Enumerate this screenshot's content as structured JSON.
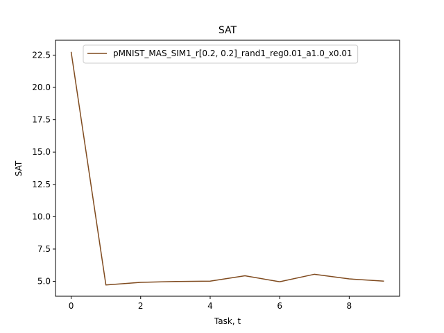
{
  "chart_data": {
    "type": "line",
    "title": "SAT",
    "xlabel": "Task, t",
    "ylabel": "SAT",
    "xlim": [
      -0.45,
      9.45
    ],
    "ylim": [
      3.85,
      23.65
    ],
    "x_ticks": [
      0,
      2,
      4,
      6,
      8
    ],
    "y_ticks": [
      5.0,
      7.5,
      10.0,
      12.5,
      15.0,
      17.5,
      20.0,
      22.5
    ],
    "x_tick_labels": [
      "0",
      "2",
      "4",
      "6",
      "8"
    ],
    "y_tick_labels": [
      "5.0",
      "7.5",
      "10.0",
      "12.5",
      "15.0",
      "17.5",
      "20.0",
      "22.5"
    ],
    "grid": false,
    "legend_position": "top-right",
    "series": [
      {
        "name": "pMNIST_MAS_SIM1_r[0.2, 0.2]_rand1_reg0.01_a1.0_x0.01",
        "color": "#7f4a1e",
        "x": [
          0,
          1,
          2,
          3,
          4,
          5,
          6,
          7,
          8,
          9
        ],
        "y": [
          22.75,
          4.72,
          4.92,
          4.99,
          5.02,
          5.43,
          4.97,
          5.55,
          5.19,
          5.02
        ]
      }
    ]
  }
}
